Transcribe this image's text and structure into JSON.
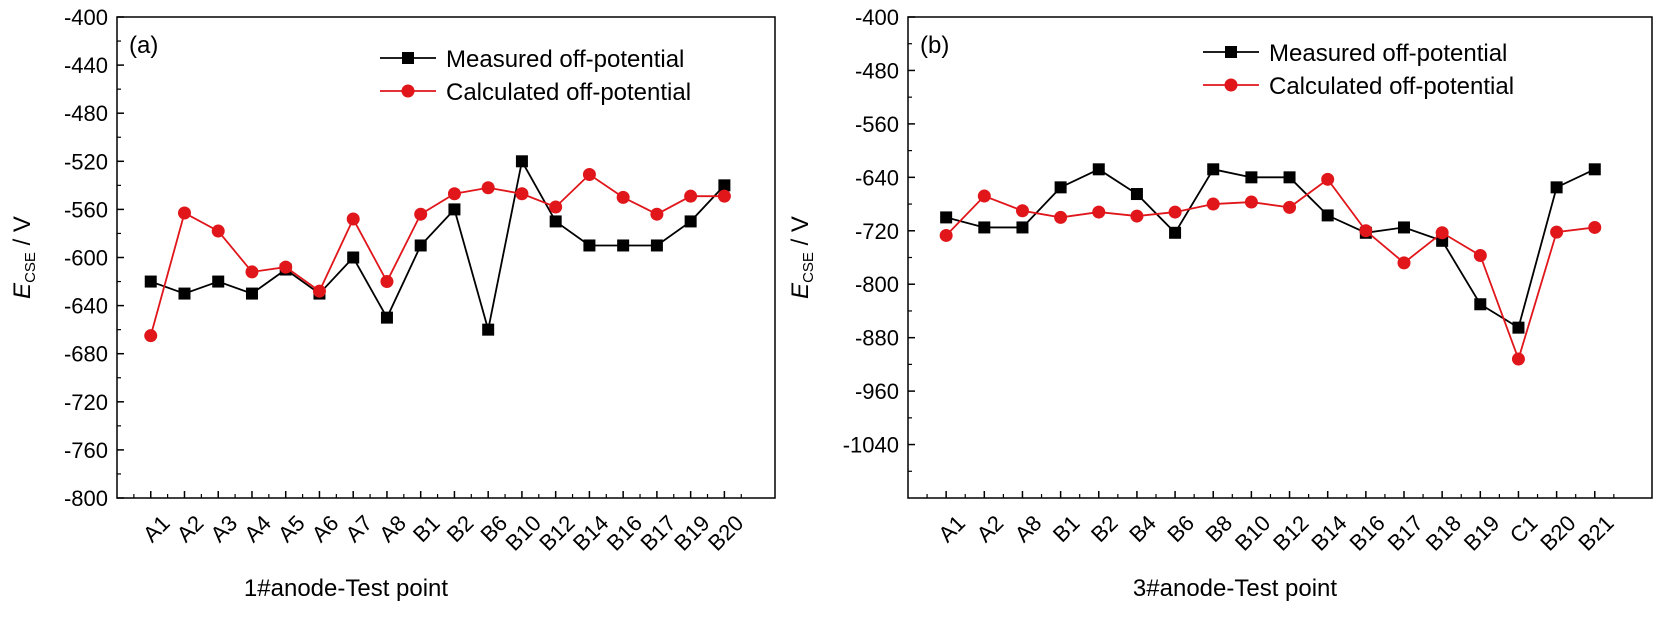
{
  "colors": {
    "measured": "#000000",
    "calculated": "#e0161b",
    "axis": "#000000"
  },
  "chart_data": [
    {
      "type": "line",
      "panel_label": "(a)",
      "xlabel": "1#anode-Test point",
      "ylabel": {
        "main": "E",
        "sub": "CSE",
        "unit": " / V"
      },
      "ylim": [
        -800,
        -400
      ],
      "yticks": [
        "-400",
        "-440",
        "-480",
        "-520",
        "-560",
        "-600",
        "-640",
        "-680",
        "-720",
        "-760",
        "-800"
      ],
      "categories": [
        "A1",
        "A2",
        "A3",
        "A4",
        "A5",
        "A6",
        "A7",
        "A8",
        "B1",
        "B2",
        "B6",
        "B10",
        "B12",
        "B14",
        "B16",
        "B17",
        "B19",
        "B20"
      ],
      "legend_position": "top-right",
      "grid": false,
      "series": [
        {
          "name": "Measured off-potential",
          "marker": "square",
          "color_key": "measured",
          "values": [
            -620,
            -630,
            -620,
            -630,
            -610,
            -630,
            -600,
            -650,
            -590,
            -560,
            -660,
            -520,
            -570,
            -590,
            -590,
            -590,
            -570,
            -540
          ]
        },
        {
          "name": "Calculated off-potential",
          "marker": "circle",
          "color_key": "calculated",
          "values": [
            -665,
            -563,
            -578,
            -612,
            -608,
            -628,
            -568,
            -620,
            -564,
            -547,
            -542,
            -547,
            -558,
            -531,
            -550,
            -564,
            -549,
            -549
          ]
        }
      ]
    },
    {
      "type": "line",
      "panel_label": "(b)",
      "xlabel": "3#anode-Test point",
      "ylabel": {
        "main": "E",
        "sub": "CSE",
        "unit": " / V"
      },
      "ylim": [
        -1120,
        -400
      ],
      "yticks": [
        "-400",
        "-480",
        "-560",
        "-640",
        "-720",
        "-800",
        "-880",
        "-960",
        "-1040"
      ],
      "categories": [
        "A1",
        "A2",
        "A8",
        "B1",
        "B2",
        "B4",
        "B6",
        "B8",
        "B10",
        "B12",
        "B14",
        "B16",
        "B17",
        "B18",
        "B19",
        "C1",
        "B20",
        "B21"
      ],
      "legend_position": "top-right",
      "grid": false,
      "series": [
        {
          "name": "Measured off-potential",
          "marker": "square",
          "color_key": "measured",
          "values": [
            -700,
            -715,
            -715,
            -655,
            -628,
            -665,
            -723,
            -628,
            -640,
            -640,
            -697,
            -723,
            -715,
            -735,
            -830,
            -865,
            -655,
            -628
          ]
        },
        {
          "name": "Calculated off-potential",
          "marker": "circle",
          "color_key": "calculated",
          "values": [
            -727,
            -668,
            -690,
            -700,
            -692,
            -698,
            -692,
            -680,
            -677,
            -685,
            -643,
            -720,
            -768,
            -723,
            -757,
            -912,
            -722,
            -715
          ]
        }
      ]
    }
  ]
}
